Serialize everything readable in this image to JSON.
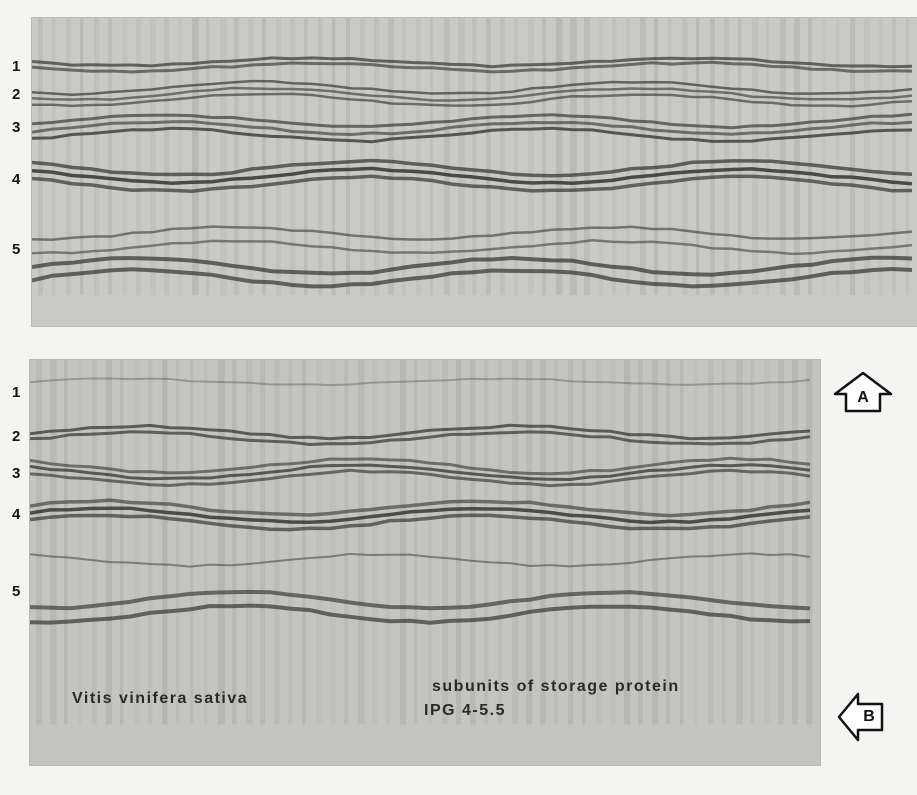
{
  "panels": [
    {
      "id": "A",
      "band_labels": [
        "1",
        "2",
        "3",
        "4",
        "5"
      ]
    },
    {
      "id": "B",
      "band_labels": [
        "1",
        "2",
        "3",
        "4",
        "5"
      ]
    }
  ],
  "caption": {
    "species": "Vitis vinifera sativa",
    "line1": "subunits of storage protein",
    "line2": "IPG 4-5.5"
  },
  "markers": {
    "a": "A",
    "b": "B"
  },
  "colors": {
    "gel": "#c6c6c3",
    "band": "#2b2b2b",
    "background": "#f4f4f2"
  }
}
